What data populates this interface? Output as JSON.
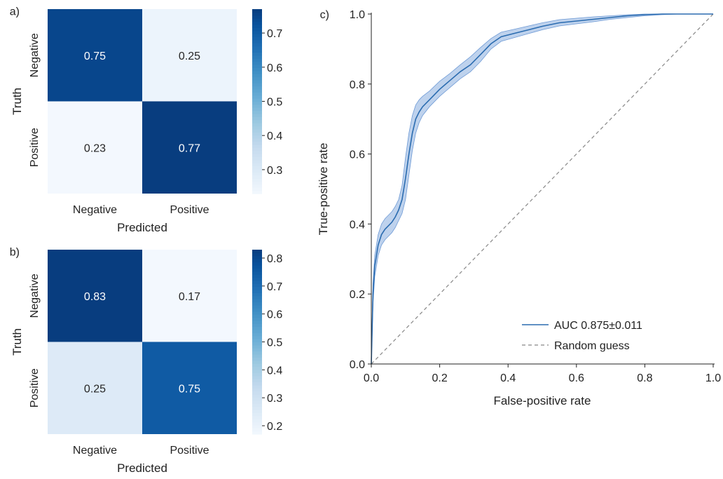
{
  "chart_data": [
    {
      "type": "heatmap",
      "panel_label": "a)",
      "xlabel": "Predicted",
      "ylabel": "Truth",
      "x_categories": [
        "Negative",
        "Positive"
      ],
      "y_categories": [
        "Negative",
        "Positive"
      ],
      "values": [
        [
          0.75,
          0.25
        ],
        [
          0.23,
          0.77
        ]
      ],
      "cell_labels": [
        [
          "0.75",
          "0.25"
        ],
        [
          "0.23",
          "0.77"
        ]
      ],
      "colorbar": {
        "min": 0.23,
        "max": 0.77,
        "ticks": [
          0.3,
          0.4,
          0.5,
          0.6,
          0.7
        ],
        "tick_labels": [
          "0.3",
          "0.4",
          "0.5",
          "0.6",
          "0.7"
        ],
        "colormap": "Blues"
      }
    },
    {
      "type": "heatmap",
      "panel_label": "b)",
      "xlabel": "Predicted",
      "ylabel": "Truth",
      "x_categories": [
        "Negative",
        "Positive"
      ],
      "y_categories": [
        "Negative",
        "Positive"
      ],
      "values": [
        [
          0.83,
          0.17
        ],
        [
          0.25,
          0.75
        ]
      ],
      "cell_labels": [
        [
          "0.83",
          "0.17"
        ],
        [
          "0.25",
          "0.75"
        ]
      ],
      "colorbar": {
        "min": 0.17,
        "max": 0.83,
        "ticks": [
          0.2,
          0.3,
          0.4,
          0.5,
          0.6,
          0.7,
          0.8
        ],
        "tick_labels": [
          "0.2",
          "0.3",
          "0.4",
          "0.5",
          "0.6",
          "0.7",
          "0.8"
        ],
        "colormap": "Blues"
      }
    },
    {
      "type": "line",
      "panel_label": "c)",
      "xlabel": "False-positive rate",
      "ylabel": "True-positive rate",
      "xlim": [
        0.0,
        1.0
      ],
      "ylim": [
        0.0,
        1.0
      ],
      "xticks": [
        0.0,
        0.2,
        0.4,
        0.6,
        0.8,
        1.0
      ],
      "xtick_labels": [
        "0.0",
        "0.2",
        "0.4",
        "0.6",
        "0.8",
        "1.0"
      ],
      "yticks": [
        0.0,
        0.2,
        0.4,
        0.6,
        0.8,
        1.0
      ],
      "ytick_labels": [
        "0.0",
        "0.2",
        "0.4",
        "0.6",
        "0.8",
        "1.0"
      ],
      "grid": false,
      "legend_position": "lower-right",
      "series": [
        {
          "name": "AUC 0.875±0.011",
          "color": "#2b6cb0",
          "style": "solid",
          "x": [
            0.0,
            0.005,
            0.01,
            0.02,
            0.03,
            0.04,
            0.05,
            0.06,
            0.07,
            0.08,
            0.09,
            0.1,
            0.11,
            0.12,
            0.13,
            0.14,
            0.15,
            0.17,
            0.2,
            0.23,
            0.26,
            0.29,
            0.32,
            0.35,
            0.38,
            0.42,
            0.46,
            0.5,
            0.55,
            0.6,
            0.65,
            0.7,
            0.75,
            0.8,
            0.85,
            0.9,
            0.95,
            1.0
          ],
          "y": [
            0.0,
            0.2,
            0.28,
            0.34,
            0.37,
            0.385,
            0.395,
            0.405,
            0.42,
            0.44,
            0.47,
            0.53,
            0.6,
            0.66,
            0.7,
            0.72,
            0.735,
            0.755,
            0.785,
            0.81,
            0.835,
            0.855,
            0.885,
            0.915,
            0.935,
            0.945,
            0.955,
            0.965,
            0.975,
            0.98,
            0.985,
            0.99,
            0.995,
            0.998,
            1.0,
            1.0,
            1.0,
            1.0
          ],
          "band_lower": [
            0.0,
            0.17,
            0.25,
            0.31,
            0.34,
            0.355,
            0.365,
            0.375,
            0.39,
            0.41,
            0.43,
            0.47,
            0.54,
            0.61,
            0.66,
            0.69,
            0.71,
            0.735,
            0.765,
            0.79,
            0.815,
            0.835,
            0.865,
            0.9,
            0.922,
            0.933,
            0.944,
            0.955,
            0.966,
            0.972,
            0.978,
            0.985,
            0.99,
            0.995,
            0.998,
            1.0,
            1.0,
            1.0
          ],
          "band_upper": [
            0.0,
            0.23,
            0.31,
            0.37,
            0.4,
            0.415,
            0.425,
            0.435,
            0.45,
            0.47,
            0.51,
            0.59,
            0.66,
            0.71,
            0.74,
            0.755,
            0.765,
            0.78,
            0.808,
            0.83,
            0.855,
            0.878,
            0.905,
            0.93,
            0.948,
            0.957,
            0.966,
            0.975,
            0.984,
            0.988,
            0.992,
            0.995,
            0.998,
            1.0,
            1.0,
            1.0,
            1.0,
            1.0
          ],
          "band_color": "#6f9bd6"
        },
        {
          "name": "Random guess",
          "color": "#888888",
          "style": "dashed",
          "x": [
            0.0,
            1.0
          ],
          "y": [
            0.0,
            1.0
          ]
        }
      ]
    }
  ]
}
